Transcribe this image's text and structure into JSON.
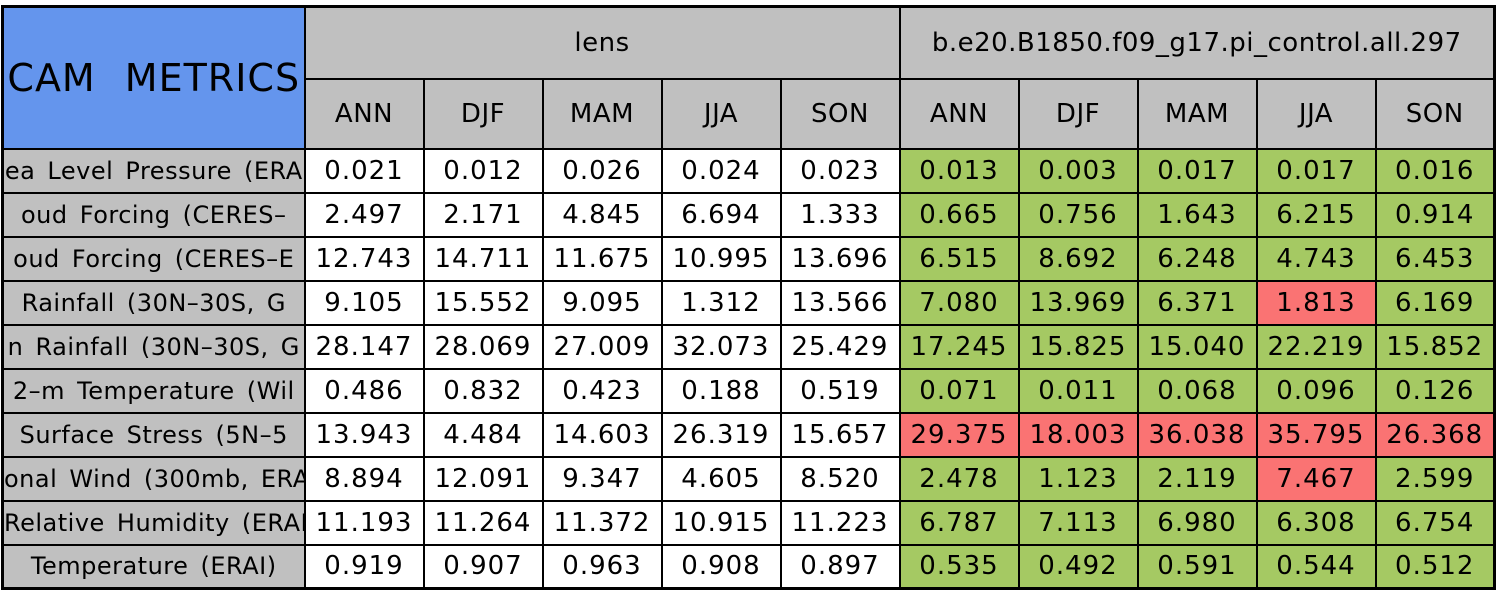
{
  "chart_data": {
    "type": "table",
    "title": "CAM METRICS",
    "column_groups": [
      "lens",
      "b.e20.B1850.f09_g17.pi_control.all.297"
    ],
    "season_columns": [
      "ANN",
      "DJF",
      "MAM",
      "JJA",
      "SON"
    ],
    "rows": [
      {
        "label": "ea Level Pressure (ERA",
        "lens": [
          "0.021",
          "0.012",
          "0.026",
          "0.024",
          "0.023"
        ],
        "model": [
          "0.013",
          "0.003",
          "0.017",
          "0.017",
          "0.016"
        ],
        "model_status": [
          "better",
          "better",
          "better",
          "better",
          "better"
        ]
      },
      {
        "label": "oud Forcing (CERES–",
        "lens": [
          "2.497",
          "2.171",
          "4.845",
          "6.694",
          "1.333"
        ],
        "model": [
          "0.665",
          "0.756",
          "1.643",
          "6.215",
          "0.914"
        ],
        "model_status": [
          "better",
          "better",
          "better",
          "better",
          "better"
        ]
      },
      {
        "label": "oud Forcing (CERES–E",
        "lens": [
          "12.743",
          "14.711",
          "11.675",
          "10.995",
          "13.696"
        ],
        "model": [
          "6.515",
          "8.692",
          "6.248",
          "4.743",
          "6.453"
        ],
        "model_status": [
          "better",
          "better",
          "better",
          "better",
          "better"
        ]
      },
      {
        "label": "Rainfall (30N–30S, G",
        "lens": [
          "9.105",
          "15.552",
          "9.095",
          "1.312",
          "13.566"
        ],
        "model": [
          "7.080",
          "13.969",
          "6.371",
          "1.813",
          "6.169"
        ],
        "model_status": [
          "better",
          "better",
          "better",
          "worse",
          "better"
        ]
      },
      {
        "label": "n Rainfall (30N–30S, G",
        "lens": [
          "28.147",
          "28.069",
          "27.009",
          "32.073",
          "25.429"
        ],
        "model": [
          "17.245",
          "15.825",
          "15.040",
          "22.219",
          "15.852"
        ],
        "model_status": [
          "better",
          "better",
          "better",
          "better",
          "better"
        ]
      },
      {
        "label": "2–m Temperature (Wil",
        "lens": [
          "0.486",
          "0.832",
          "0.423",
          "0.188",
          "0.519"
        ],
        "model": [
          "0.071",
          "0.011",
          "0.068",
          "0.096",
          "0.126"
        ],
        "model_status": [
          "better",
          "better",
          "better",
          "better",
          "better"
        ]
      },
      {
        "label": "Surface Stress (5N–5",
        "lens": [
          "13.943",
          "4.484",
          "14.603",
          "26.319",
          "15.657"
        ],
        "model": [
          "29.375",
          "18.003",
          "36.038",
          "35.795",
          "26.368"
        ],
        "model_status": [
          "worse",
          "worse",
          "worse",
          "worse",
          "worse"
        ]
      },
      {
        "label": "onal Wind (300mb, ERA",
        "lens": [
          "8.894",
          "12.091",
          "9.347",
          "4.605",
          "8.520"
        ],
        "model": [
          "2.478",
          "1.123",
          "2.119",
          "7.467",
          "2.599"
        ],
        "model_status": [
          "better",
          "better",
          "better",
          "worse",
          "better"
        ]
      },
      {
        "label": "Relative Humidity (ERAI",
        "lens": [
          "11.193",
          "11.264",
          "11.372",
          "10.915",
          "11.223"
        ],
        "model": [
          "6.787",
          "7.113",
          "6.980",
          "6.308",
          "6.754"
        ],
        "model_status": [
          "better",
          "better",
          "better",
          "better",
          "better"
        ]
      },
      {
        "label": "Temperature (ERAI)",
        "lens": [
          "0.919",
          "0.907",
          "0.963",
          "0.908",
          "0.897"
        ],
        "model": [
          "0.535",
          "0.492",
          "0.591",
          "0.544",
          "0.512"
        ],
        "model_status": [
          "better",
          "better",
          "better",
          "better",
          "better"
        ]
      }
    ],
    "legend": {
      "better_color_meaning": "model value highlighted green",
      "worse_color_meaning": "model value highlighted red"
    }
  },
  "colors": {
    "title_bg": "#6495ED",
    "header_bg": "#C0C0C0",
    "better_bg": "#A5C963",
    "worse_bg": "#FA7373",
    "lens_cell_bg": "#FFFFFF",
    "border": "#000000"
  }
}
